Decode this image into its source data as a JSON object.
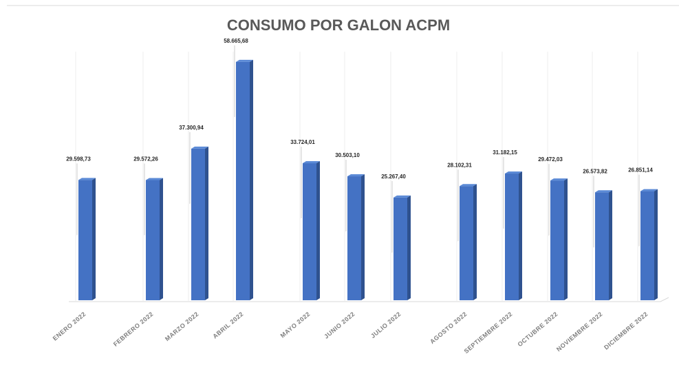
{
  "chart_data": {
    "type": "bar",
    "title": "CONSUMO POR GALON ACPM",
    "categories": [
      "ENERO 2022",
      "FEBRERO 2022",
      "MARZO 2022",
      "ABRIL 2022",
      "MAYO 2022",
      "JUNIO 2022",
      "JULIO 2022",
      "AGOSTO 2022",
      "SEPTIEMBRE 2022",
      "OCTUBRE 2022",
      "NOVIEMBRE 2022",
      "DICIEMBRE 2022"
    ],
    "values": [
      29598.73,
      29572.26,
      37300.94,
      58665.68,
      33724.01,
      30503.1,
      25267.4,
      28102.31,
      31182.15,
      29472.03,
      26573.82,
      26851.14
    ],
    "value_labels": [
      "29.598,73",
      "29.572,26",
      "37.300,94",
      "58.665,68",
      "33.724,01",
      "30.503,10",
      "25.267,40",
      "28.102,31",
      "31.182,15",
      "29.472,03",
      "26.573,82",
      "26.851,14"
    ],
    "color": "#4472c4",
    "ylim": [
      0,
      60000
    ]
  }
}
